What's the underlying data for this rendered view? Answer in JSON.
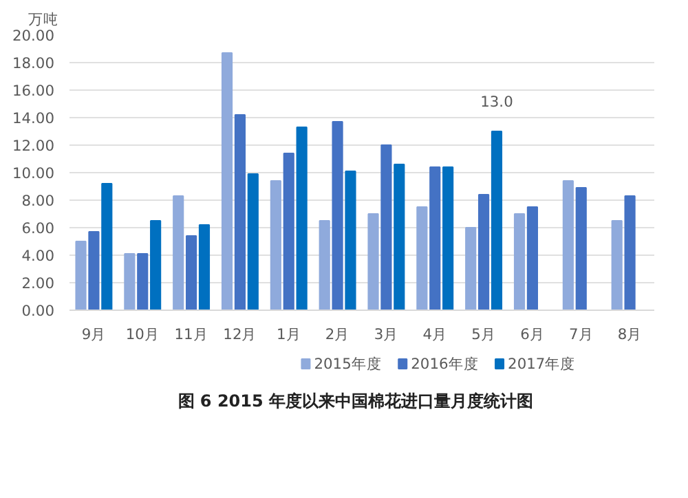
{
  "chart_data": {
    "type": "bar",
    "title": "图 6   2015 年度以来中国棉花进口量月度统计图",
    "ylabel": "万吨",
    "categories": [
      "9月",
      "10月",
      "11月",
      "12月",
      "1月",
      "2月",
      "3月",
      "4月",
      "5月",
      "6月",
      "7月",
      "8月"
    ],
    "series": [
      {
        "name": "2015年度",
        "color": "#8faadc",
        "values": [
          5.0,
          4.1,
          8.3,
          18.7,
          9.4,
          6.5,
          7.0,
          7.5,
          6.0,
          7.0,
          9.4,
          6.5
        ]
      },
      {
        "name": "2016年度",
        "color": "#4472c4",
        "values": [
          5.7,
          4.1,
          5.4,
          14.2,
          11.4,
          13.7,
          12.0,
          10.4,
          8.4,
          7.5,
          8.9,
          8.3
        ]
      },
      {
        "name": "2017年度",
        "color": "#0070c0",
        "values": [
          9.2,
          6.5,
          6.2,
          9.9,
          13.3,
          10.1,
          10.6,
          10.4,
          13.0,
          null,
          null,
          null
        ],
        "value_labels": [
          null,
          null,
          null,
          null,
          null,
          null,
          null,
          null,
          "13.0",
          null,
          null,
          null
        ]
      }
    ],
    "ylim": [
      0,
      20
    ],
    "yticks": [
      {
        "value": 0,
        "label": "0.00"
      },
      {
        "value": 2,
        "label": "2.00"
      },
      {
        "value": 4,
        "label": "4.00"
      },
      {
        "value": 6,
        "label": "6.00"
      },
      {
        "value": 8,
        "label": "8.00"
      },
      {
        "value": 10,
        "label": "10.00"
      },
      {
        "value": 12,
        "label": "12.00"
      },
      {
        "value": 14,
        "label": "14.00"
      },
      {
        "value": 16,
        "label": "16.00"
      },
      {
        "value": 18,
        "label": "18.00"
      },
      {
        "value": 20,
        "label": "20.00"
      }
    ],
    "grid": "y",
    "legend": "bottom"
  }
}
